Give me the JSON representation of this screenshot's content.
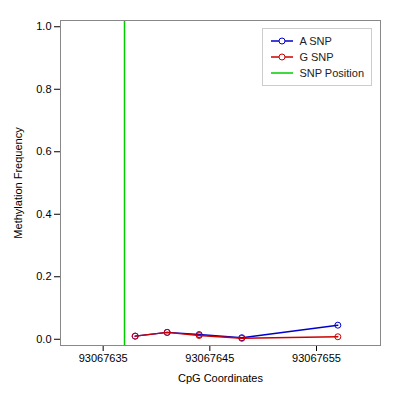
{
  "chart_data": {
    "type": "line",
    "xlabel": "CpG Coordinates",
    "ylabel": "Methylation Frequency",
    "x": [
      93067638,
      93067641,
      93067644,
      93067648,
      93067657
    ],
    "series": [
      {
        "name": "A SNP",
        "color": "#0000cd",
        "marker": "circle",
        "line_style": "solid",
        "values": [
          0.01,
          0.022,
          0.015,
          0.005,
          0.045
        ]
      },
      {
        "name": "G SNP",
        "color": "#cd0000",
        "marker": "circle",
        "line_style": "solid",
        "values": [
          0.01,
          0.022,
          0.012,
          0.003,
          0.008
        ]
      },
      {
        "name": "SNP Position",
        "type": "rule",
        "color": "#00cd00",
        "line_style": "solid",
        "x": 93067637
      }
    ],
    "xlim": [
      93067631,
      93067661
    ],
    "xticks": [
      93067635,
      93067645,
      93067655
    ],
    "ylim": [
      -0.02,
      1.02
    ],
    "yticks": [
      {
        "value": 0,
        "label": "0.0"
      },
      0.2,
      0.4,
      0.6,
      0.8,
      {
        "value": 1,
        "label": "1.0"
      }
    ],
    "grid": false,
    "legend": "upper right"
  }
}
